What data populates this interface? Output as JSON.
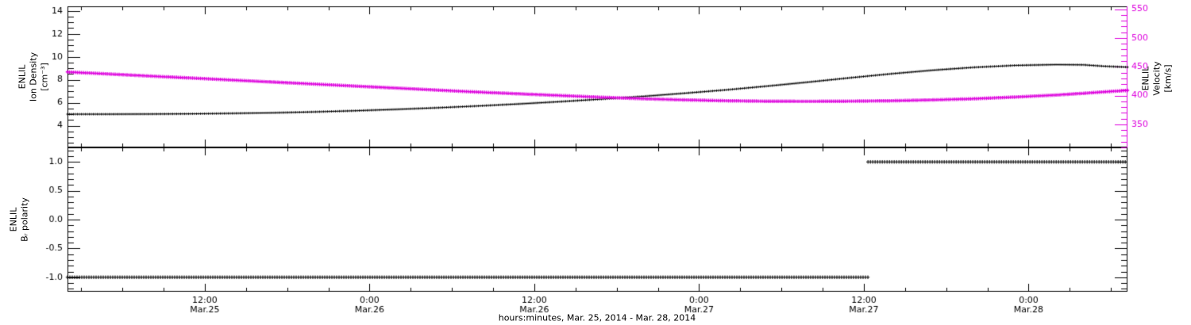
{
  "figure": {
    "background": "#ffffff",
    "accent_magenta": "#dd00dd"
  },
  "x_axis": {
    "title": "hours:minutes, Mar. 25, 2014 - Mar. 28, 2014",
    "range": [
      2,
      79.2
    ],
    "minor_step": 3,
    "major_ticks": [
      {
        "hour": 12,
        "line1": "12:00",
        "line2": "Mar.25"
      },
      {
        "hour": 24,
        "line1": "0:00",
        "line2": "Mar.26"
      },
      {
        "hour": 36,
        "line1": "12:00",
        "line2": "Mar.26"
      },
      {
        "hour": 48,
        "line1": "0:00",
        "line2": "Mar.27"
      },
      {
        "hour": 60,
        "line1": "12:00",
        "line2": "Mar.27"
      },
      {
        "hour": 72,
        "line1": "0:00",
        "line2": "Mar.28"
      }
    ]
  },
  "chart_data": [
    {
      "type": "line",
      "panel": "density-velocity",
      "left_axis": {
        "label": "ENLIL\nIon Density\n[cm⁻³]",
        "range": [
          2.1,
          14.4
        ],
        "ticks": [
          4,
          6,
          8,
          10,
          12,
          14
        ],
        "tick_labels": [
          "4",
          "6",
          "8",
          "10",
          "12",
          "14"
        ],
        "minor_step": 0.5,
        "color": "#000000"
      },
      "right_axis": {
        "label": "ENLIL\nVelocity\n[km/s]",
        "range": [
          310,
          555
        ],
        "ticks": [
          350,
          400,
          450,
          500,
          550
        ],
        "tick_labels": [
          "350",
          "400",
          "450",
          "500",
          "550"
        ],
        "minor_step": 10,
        "color": "#dd00dd"
      },
      "series": [
        {
          "name": "ion-density",
          "axis": "left",
          "color": "#000000",
          "x": [
            2,
            5,
            8,
            11,
            14,
            17,
            20,
            23,
            26,
            29,
            32,
            35,
            38,
            41,
            44,
            47,
            50,
            53,
            56,
            59,
            62,
            65,
            68,
            71,
            74,
            76,
            77.5,
            79.2
          ],
          "y": [
            5.0,
            5.0,
            5.01,
            5.03,
            5.07,
            5.12,
            5.2,
            5.3,
            5.42,
            5.56,
            5.72,
            5.9,
            6.1,
            6.32,
            6.56,
            6.83,
            7.12,
            7.45,
            7.8,
            8.17,
            8.52,
            8.83,
            9.08,
            9.25,
            9.32,
            9.3,
            9.18,
            9.1
          ]
        },
        {
          "name": "velocity",
          "axis": "right",
          "color": "#dd00dd",
          "x": [
            2,
            5,
            8,
            11,
            14,
            17,
            20,
            23,
            26,
            29,
            32,
            35,
            38,
            41,
            44,
            47,
            50,
            53,
            56,
            59,
            62,
            65,
            68,
            71,
            74,
            76,
            77.5,
            79.2
          ],
          "y": [
            441,
            437.5,
            434,
            430.5,
            427,
            423.5,
            420,
            416.5,
            413,
            409.5,
            406,
            403,
            400,
            397,
            394.5,
            392.5,
            391,
            390.2,
            390,
            390.3,
            391,
            392.5,
            394.5,
            397.5,
            401,
            404,
            406.5,
            409
          ]
        }
      ]
    },
    {
      "type": "step",
      "panel": "br-polarity",
      "left_axis": {
        "label": "ENLIL\nBᵣ polarity",
        "range": [
          -1.25,
          1.25
        ],
        "ticks": [
          -1.0,
          -0.5,
          0.0,
          0.5,
          1.0
        ],
        "tick_labels": [
          "-1.0",
          "-0.5",
          "0.0",
          "0.5",
          "1.0"
        ],
        "minor_step": 0.1,
        "color": "#000000"
      },
      "series": [
        {
          "name": "br-polarity-negative",
          "axis": "left",
          "color": "#000000",
          "x": [
            2,
            60.3
          ],
          "y": [
            -1,
            -1
          ]
        },
        {
          "name": "br-polarity-positive",
          "axis": "left",
          "color": "#000000",
          "x": [
            60.3,
            79.2
          ],
          "y": [
            1,
            1
          ]
        }
      ]
    }
  ]
}
